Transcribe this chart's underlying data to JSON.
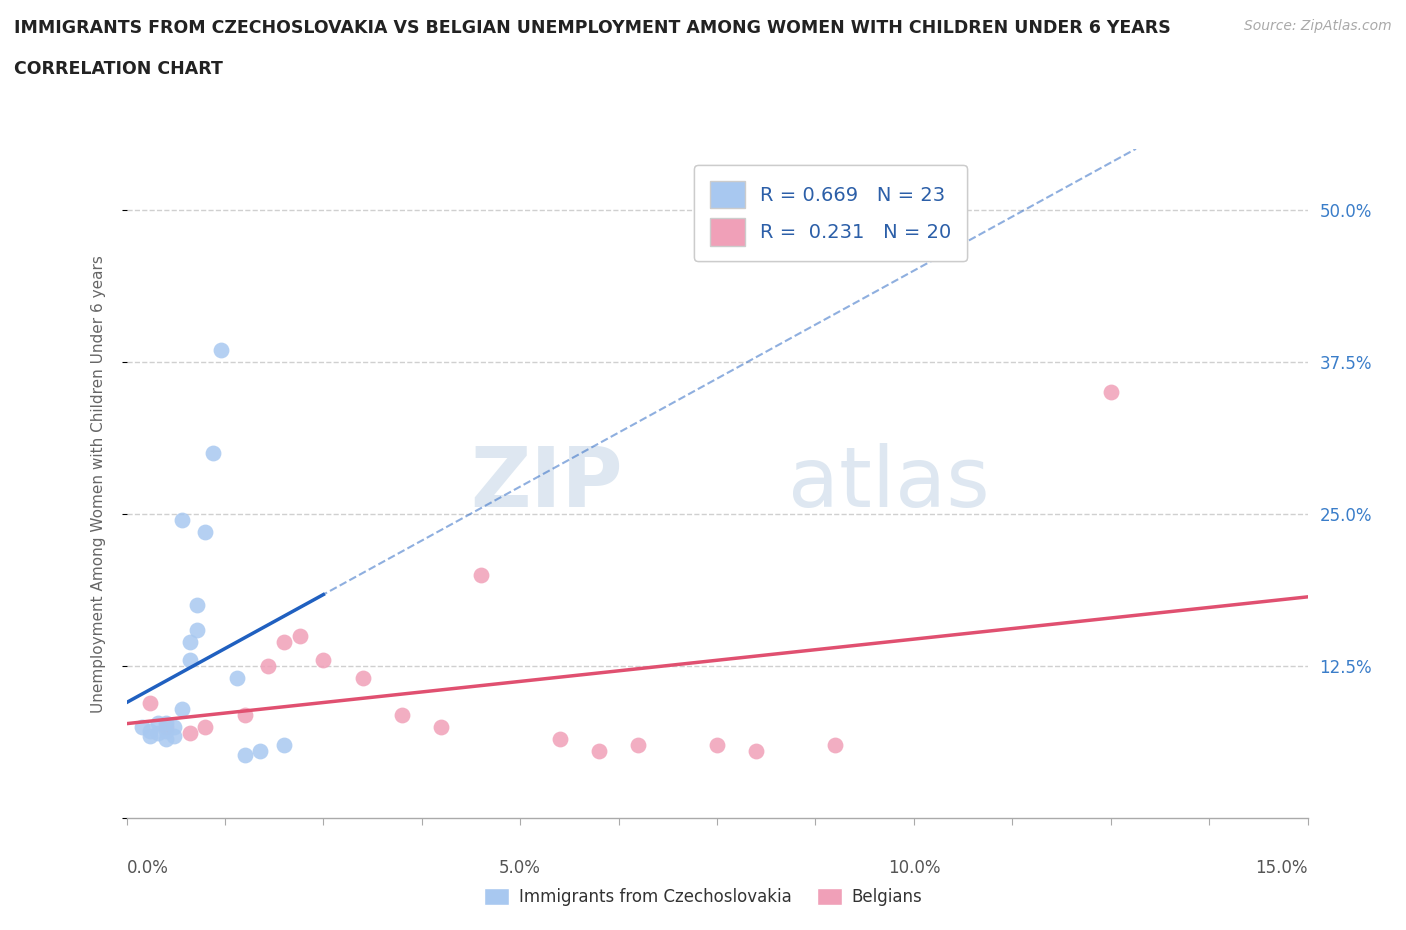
{
  "title_line1": "IMMIGRANTS FROM CZECHOSLOVAKIA VS BELGIAN UNEMPLOYMENT AMONG WOMEN WITH CHILDREN UNDER 6 YEARS",
  "title_line2": "CORRELATION CHART",
  "source_text": "Source: ZipAtlas.com",
  "ylabel": "Unemployment Among Women with Children Under 6 years",
  "xlim": [
    0.0,
    0.15
  ],
  "ylim": [
    0.0,
    0.55
  ],
  "xtick_positions": [
    0.0,
    0.0125,
    0.025,
    0.0375,
    0.05,
    0.0625,
    0.075,
    0.0875,
    0.1,
    0.1125,
    0.125,
    0.1375,
    0.15
  ],
  "xtick_labels_major": {
    "0.0": "0.0%",
    "0.05": "5.0%",
    "0.10": "10.0%",
    "0.15": "15.0%"
  },
  "ytick_positions": [
    0.0,
    0.125,
    0.25,
    0.375,
    0.5
  ],
  "ytick_labels": [
    "",
    "12.5%",
    "25.0%",
    "37.5%",
    "50.0%"
  ],
  "grid_color": "#d0d0d0",
  "background_color": "#ffffff",
  "blue_color": "#a8c8f0",
  "blue_line_color": "#2060c0",
  "pink_color": "#f0a0b8",
  "pink_line_color": "#e05070",
  "R_blue": 0.669,
  "N_blue": 23,
  "R_pink": 0.231,
  "N_pink": 20,
  "legend_label_blue": "Immigrants from Czechoslovakia",
  "legend_label_pink": "Belgians",
  "watermark_zip": "ZIP",
  "watermark_atlas": "atlas",
  "blue_scatter_x": [
    0.002,
    0.003,
    0.003,
    0.004,
    0.004,
    0.005,
    0.005,
    0.005,
    0.006,
    0.006,
    0.007,
    0.007,
    0.008,
    0.008,
    0.009,
    0.009,
    0.01,
    0.011,
    0.012,
    0.014,
    0.015,
    0.017,
    0.02
  ],
  "blue_scatter_y": [
    0.075,
    0.068,
    0.072,
    0.07,
    0.078,
    0.065,
    0.072,
    0.078,
    0.068,
    0.075,
    0.245,
    0.09,
    0.13,
    0.145,
    0.155,
    0.175,
    0.235,
    0.3,
    0.385,
    0.115,
    0.052,
    0.055,
    0.06
  ],
  "pink_scatter_x": [
    0.003,
    0.005,
    0.008,
    0.01,
    0.015,
    0.018,
    0.02,
    0.022,
    0.025,
    0.03,
    0.035,
    0.04,
    0.045,
    0.055,
    0.06,
    0.065,
    0.075,
    0.08,
    0.09,
    0.125
  ],
  "pink_scatter_y": [
    0.095,
    0.075,
    0.07,
    0.075,
    0.085,
    0.125,
    0.145,
    0.15,
    0.13,
    0.115,
    0.085,
    0.075,
    0.2,
    0.065,
    0.055,
    0.06,
    0.06,
    0.055,
    0.06,
    0.35
  ]
}
